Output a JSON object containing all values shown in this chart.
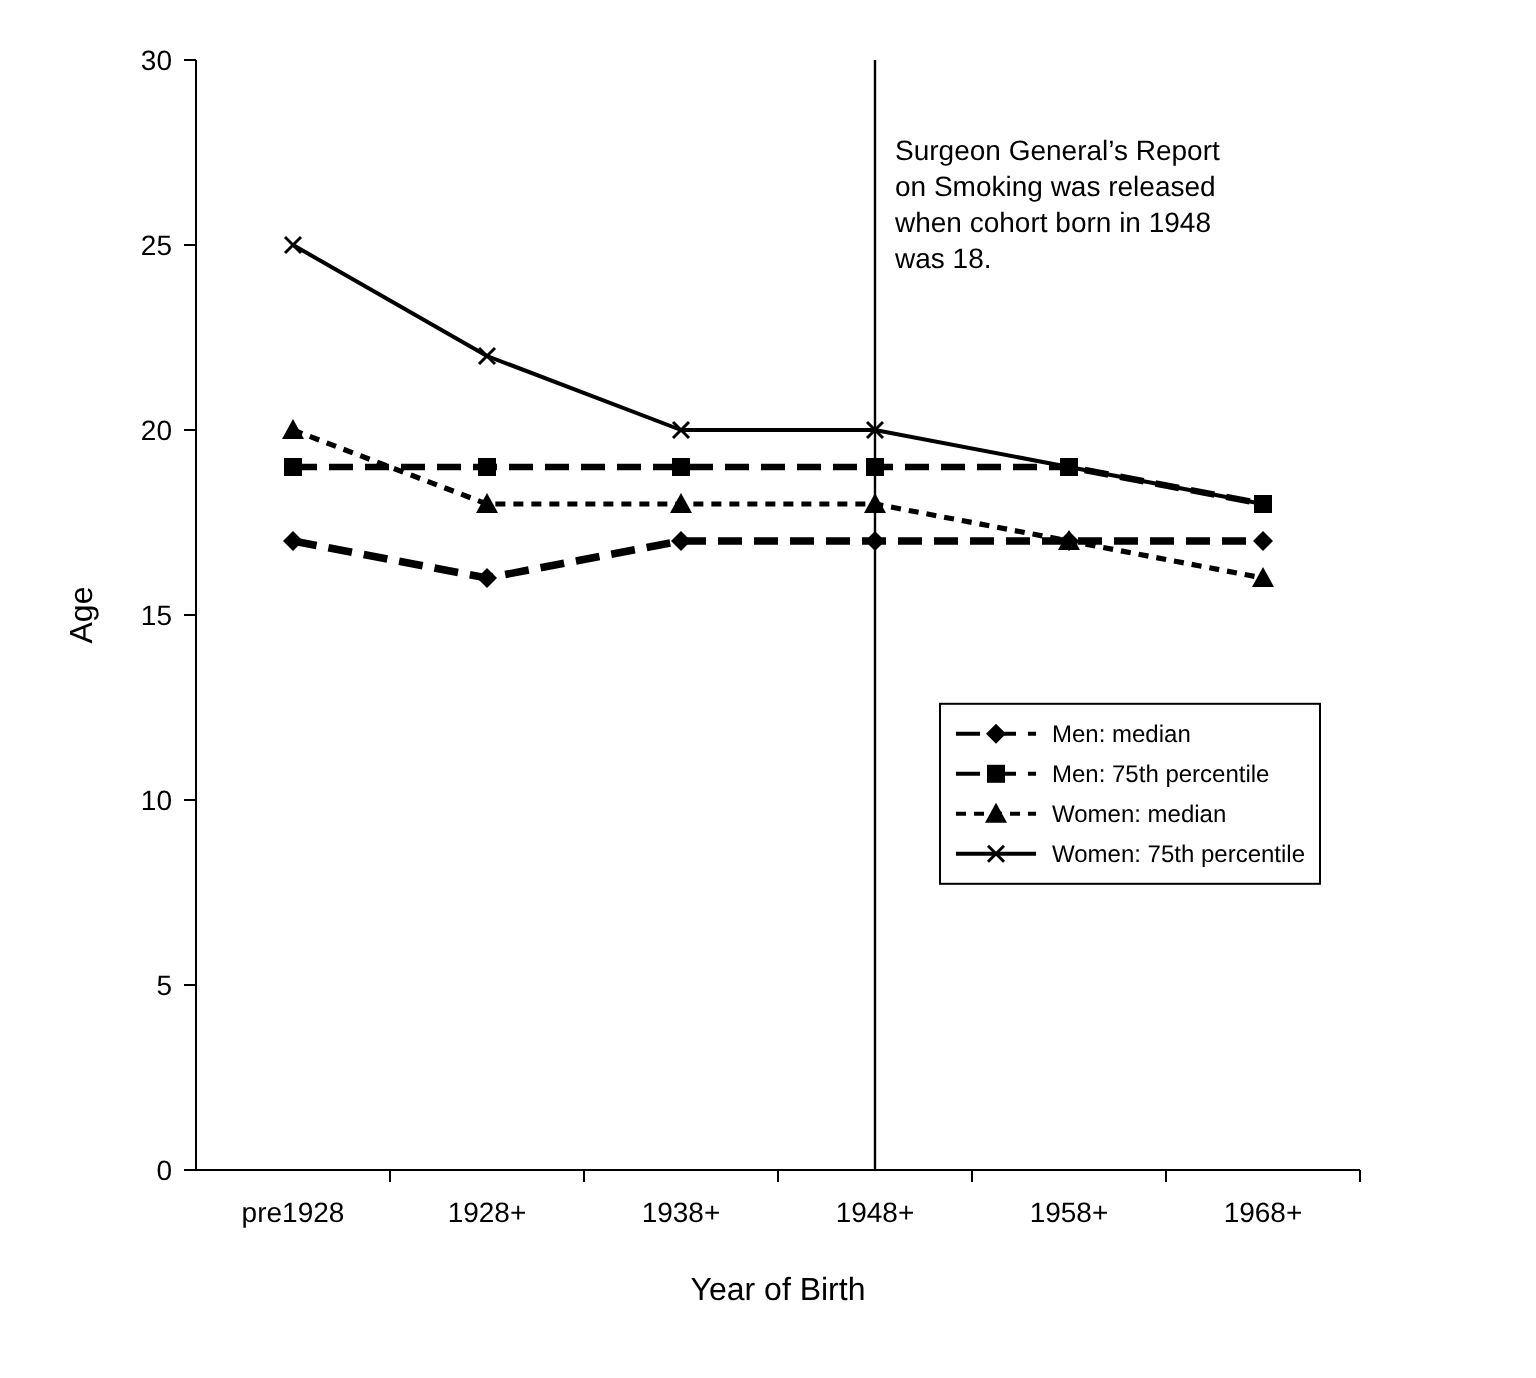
{
  "chart_data": {
    "type": "line",
    "xlabel": "Year of Birth",
    "ylabel": "Age",
    "categories": [
      "pre1928",
      "1928+",
      "1938+",
      "1948+",
      "1958+",
      "1968+"
    ],
    "series": [
      {
        "name": "Men: median",
        "color": "#000000",
        "marker": "diamond",
        "line_style": "dashed",
        "values": [
          17,
          16,
          17,
          17,
          17,
          17
        ]
      },
      {
        "name": "Men: 75th percentile",
        "color": "#000000",
        "marker": "square",
        "line_style": "dashed",
        "values": [
          19,
          19,
          19,
          19,
          19,
          18
        ]
      },
      {
        "name": "Women: median",
        "color": "#000000",
        "marker": "triangle",
        "line_style": "dotted",
        "values": [
          20,
          18,
          18,
          18,
          17,
          16
        ]
      },
      {
        "name": "Women: 75th percentile",
        "color": "#000000",
        "marker": "cross",
        "line_style": "solid",
        "values": [
          25,
          22,
          20,
          20,
          19,
          18
        ]
      }
    ],
    "ylim": [
      0,
      30
    ],
    "yticks": [
      0,
      5,
      10,
      15,
      20,
      25,
      30
    ],
    "grid": false,
    "legend": "bottom right",
    "ref_lines": [
      {
        "axis": "x",
        "value": "1948+",
        "label": "Surgeon General’s Report on Smoking was released when cohort born in 1948 was 18.",
        "color": "#000000"
      }
    ]
  }
}
